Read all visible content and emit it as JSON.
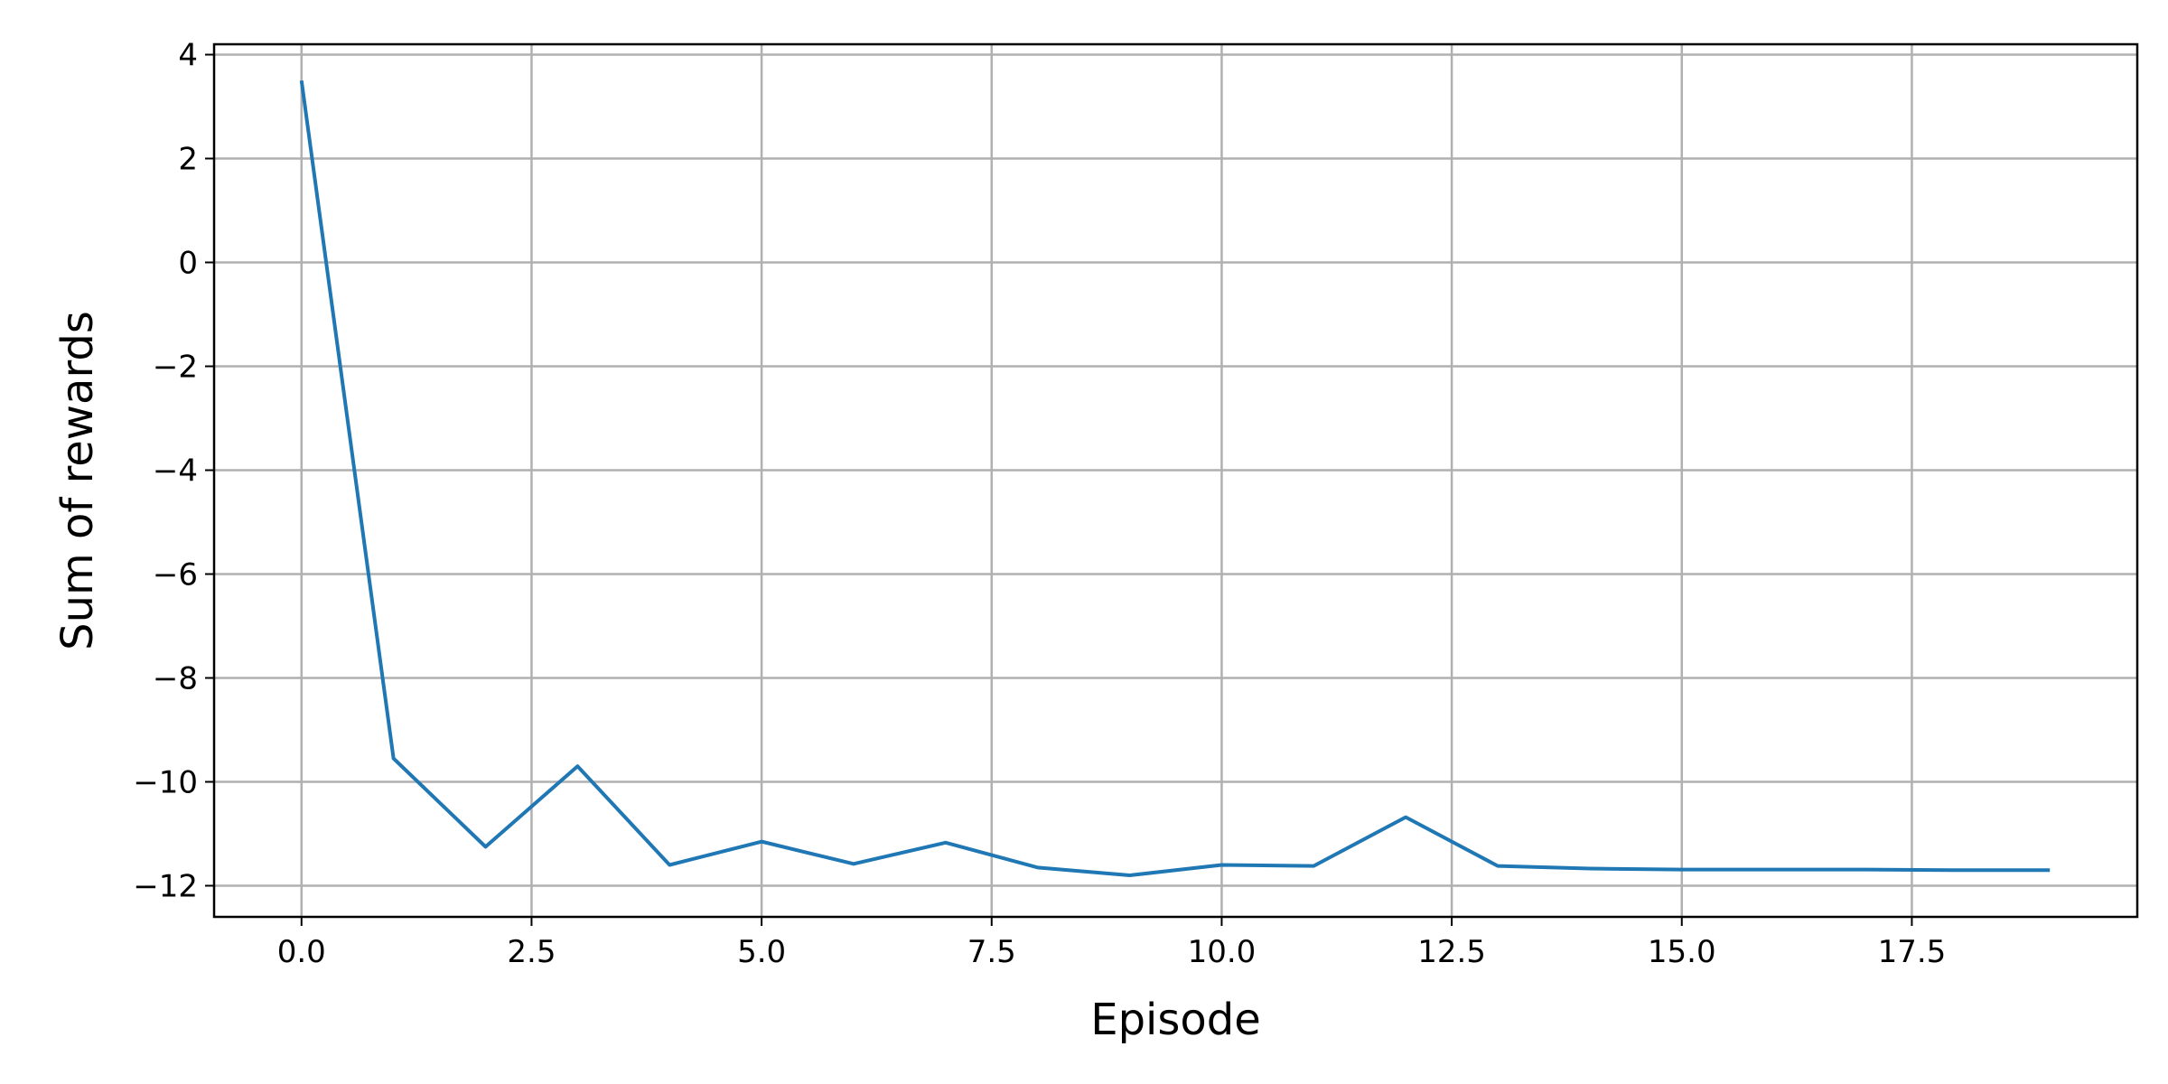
{
  "chart_data": {
    "type": "line",
    "title": "",
    "xlabel": "Episode",
    "ylabel": "Sum of rewards",
    "xlim": [
      -0.95,
      19.95
    ],
    "ylim": [
      -12.6,
      4.2
    ],
    "xticks": [
      0.0,
      2.5,
      5.0,
      7.5,
      10.0,
      12.5,
      15.0,
      17.5
    ],
    "xtick_labels": [
      "0.0",
      "2.5",
      "5.0",
      "7.5",
      "10.0",
      "12.5",
      "15.0",
      "17.5"
    ],
    "yticks": [
      4,
      2,
      0,
      -2,
      -4,
      -6,
      -8,
      -10,
      -12
    ],
    "ytick_labels": [
      "4",
      "2",
      "0",
      "−2",
      "−4",
      "−6",
      "−8",
      "−10",
      "−12"
    ],
    "grid": true,
    "series": [
      {
        "color": "#1f77b4",
        "x": [
          0,
          1,
          2,
          3,
          4,
          5,
          6,
          7,
          8,
          9,
          10,
          11,
          12,
          13,
          14,
          15,
          16,
          17,
          18,
          19
        ],
        "y": [
          3.5,
          -9.55,
          -11.25,
          -9.7,
          -11.6,
          -11.15,
          -11.58,
          -11.17,
          -11.65,
          -11.8,
          -11.6,
          -11.62,
          -10.68,
          -11.62,
          -11.67,
          -11.69,
          -11.69,
          -11.69,
          -11.7,
          -11.7
        ]
      }
    ]
  }
}
